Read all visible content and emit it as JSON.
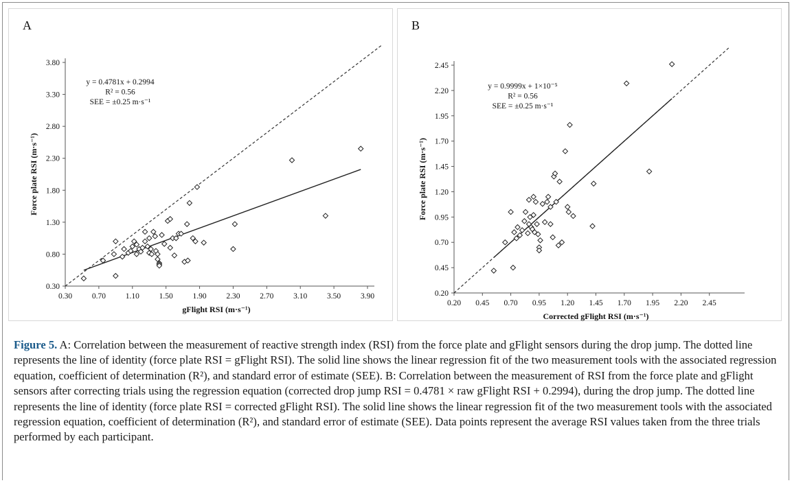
{
  "chart_data": [
    {
      "type": "scatter",
      "panel_label": "A",
      "xlabel": "gFlight RSI (m·s⁻¹)",
      "ylabel": "Force plate RSI (m·s⁻¹)",
      "xlim": [
        0.3,
        3.9
      ],
      "ylim": [
        0.3,
        3.8
      ],
      "xticks": [
        0.3,
        0.7,
        1.1,
        1.5,
        1.9,
        2.3,
        2.7,
        3.1,
        3.5,
        3.9
      ],
      "yticks": [
        0.3,
        0.8,
        1.3,
        1.8,
        2.3,
        2.8,
        3.3,
        3.8
      ],
      "xtick_labels": [
        "0.30",
        "0.70",
        "1.10",
        "1.50",
        "1.90",
        "2.30",
        "2.70",
        "3.10",
        "3.50",
        "3.90"
      ],
      "ytick_labels": [
        "0.30",
        "0.80",
        "1.30",
        "1.80",
        "2.30",
        "2.80",
        "3.30",
        "3.80"
      ],
      "grid": false,
      "identity_line": true,
      "regression": {
        "slope": 0.4781,
        "intercept": 0.2994,
        "x_range": [
          0.52,
          3.82
        ]
      },
      "annotations": [
        "y = 0.4781x + 0.2994",
        "R² = 0.56",
        "SEE = ±0.25 m·s⁻¹"
      ],
      "points": [
        [
          0.52,
          0.42
        ],
        [
          0.9,
          0.46
        ],
        [
          0.75,
          0.7
        ],
        [
          0.88,
          0.8
        ],
        [
          0.9,
          1.0
        ],
        [
          0.98,
          0.76
        ],
        [
          1.0,
          0.88
        ],
        [
          1.05,
          0.82
        ],
        [
          1.08,
          0.85
        ],
        [
          1.1,
          0.92
        ],
        [
          1.12,
          1.0
        ],
        [
          1.15,
          0.8
        ],
        [
          1.15,
          0.95
        ],
        [
          1.18,
          0.88
        ],
        [
          1.2,
          0.84
        ],
        [
          1.22,
          0.9
        ],
        [
          1.25,
          1.0
        ],
        [
          1.25,
          1.15
        ],
        [
          1.28,
          0.92
        ],
        [
          1.3,
          0.82
        ],
        [
          1.3,
          1.05
        ],
        [
          1.32,
          0.88
        ],
        [
          1.33,
          0.8
        ],
        [
          1.35,
          1.15
        ],
        [
          1.37,
          1.08
        ],
        [
          1.38,
          0.85
        ],
        [
          1.4,
          0.8
        ],
        [
          1.4,
          0.72
        ],
        [
          1.42,
          0.66
        ],
        [
          1.42,
          0.64
        ],
        [
          1.42,
          0.62
        ],
        [
          1.45,
          1.1
        ],
        [
          1.48,
          0.96
        ],
        [
          1.52,
          1.32
        ],
        [
          1.55,
          1.35
        ],
        [
          1.55,
          0.9
        ],
        [
          1.58,
          1.05
        ],
        [
          1.6,
          0.78
        ],
        [
          1.62,
          1.05
        ],
        [
          1.65,
          1.12
        ],
        [
          1.68,
          1.12
        ],
        [
          1.72,
          0.68
        ],
        [
          1.75,
          1.27
        ],
        [
          1.76,
          0.7
        ],
        [
          1.78,
          1.6
        ],
        [
          1.82,
          1.05
        ],
        [
          1.85,
          1.0
        ],
        [
          1.87,
          1.85
        ],
        [
          1.95,
          0.98
        ],
        [
          2.3,
          0.88
        ],
        [
          2.32,
          1.27
        ],
        [
          3.0,
          2.27
        ],
        [
          3.4,
          1.4
        ],
        [
          3.82,
          2.45
        ]
      ]
    },
    {
      "type": "scatter",
      "panel_label": "B",
      "xlabel": "Corrected gFlight RSI (m·s⁻¹)",
      "ylabel": "Force plate RSI (m·s⁻¹)",
      "xlim": [
        0.2,
        2.7
      ],
      "ylim": [
        0.2,
        2.45
      ],
      "xticks": [
        0.2,
        0.45,
        0.7,
        0.95,
        1.2,
        1.45,
        1.7,
        1.95,
        2.2,
        2.45
      ],
      "yticks": [
        0.2,
        0.45,
        0.7,
        0.95,
        1.2,
        1.45,
        1.7,
        1.95,
        2.2,
        2.45
      ],
      "xtick_labels": [
        "0.20",
        "0.45",
        "0.70",
        "0.95",
        "1.20",
        "1.45",
        "1.70",
        "1.95",
        "2.20",
        "2.45"
      ],
      "ytick_labels": [
        "0.20",
        "0.45",
        "0.70",
        "0.95",
        "1.20",
        "1.45",
        "1.70",
        "1.95",
        "2.20",
        "2.45"
      ],
      "grid": false,
      "identity_line": true,
      "regression": {
        "slope": 0.9999,
        "intercept": 1e-05,
        "x_range": [
          0.55,
          2.12
        ]
      },
      "annotations": [
        "y = 0.9999x + 1×10⁻⁵",
        "R² = 0.56",
        "SEE = ±0.25 m·s⁻¹"
      ],
      "points": [
        [
          0.55,
          0.42
        ],
        [
          0.65,
          0.7
        ],
        [
          0.7,
          1.0
        ],
        [
          0.72,
          0.45
        ],
        [
          0.73,
          0.8
        ],
        [
          0.75,
          0.74
        ],
        [
          0.76,
          0.85
        ],
        [
          0.78,
          0.77
        ],
        [
          0.8,
          0.82
        ],
        [
          0.82,
          0.91
        ],
        [
          0.83,
          1.0
        ],
        [
          0.85,
          0.79
        ],
        [
          0.86,
          0.88
        ],
        [
          0.86,
          1.12
        ],
        [
          0.87,
          0.95
        ],
        [
          0.88,
          0.85
        ],
        [
          0.89,
          0.83
        ],
        [
          0.9,
          1.15
        ],
        [
          0.9,
          0.97
        ],
        [
          0.91,
          0.8
        ],
        [
          0.92,
          1.1
        ],
        [
          0.93,
          0.88
        ],
        [
          0.94,
          0.78
        ],
        [
          0.95,
          0.65
        ],
        [
          0.95,
          0.62
        ],
        [
          0.96,
          0.72
        ],
        [
          0.98,
          1.08
        ],
        [
          1.0,
          0.9
        ],
        [
          1.02,
          1.1
        ],
        [
          1.03,
          1.15
        ],
        [
          1.05,
          0.88
        ],
        [
          1.05,
          1.05
        ],
        [
          1.07,
          0.75
        ],
        [
          1.08,
          1.35
        ],
        [
          1.09,
          1.38
        ],
        [
          1.1,
          1.1
        ],
        [
          1.12,
          0.67
        ],
        [
          1.13,
          1.3
        ],
        [
          1.15,
          0.7
        ],
        [
          1.18,
          1.6
        ],
        [
          1.2,
          1.05
        ],
        [
          1.21,
          1.0
        ],
        [
          1.22,
          1.86
        ],
        [
          1.25,
          0.96
        ],
        [
          1.42,
          0.86
        ],
        [
          1.43,
          1.28
        ],
        [
          1.72,
          2.27
        ],
        [
          1.92,
          1.4
        ],
        [
          2.12,
          2.46
        ]
      ]
    }
  ],
  "caption": {
    "label": "Figure 5.",
    "text": " A: Correlation between the measurement of reactive strength index (RSI) from the force plate and gFlight sensors during the drop jump. The dotted line represents the line of identity (force plate RSI = gFlight RSI). The solid line shows the linear regression fit of the two measurement tools with the associated regression equation, coefficient of determination (R²), and standard error of estimate (SEE). B: Correlation between the measurement of RSI from the force plate and gFlight sensors after correcting trials using the regression equation (corrected drop jump RSI = 0.4781 × raw gFlight RSI + 0.2994), during the drop jump. The dotted line represents the line of identity (force plate RSI = corrected gFlight RSI). The solid line shows the linear regression fit of the two measurement tools with the associated regression equation, coefficient of determination (R²), and standard error of estimate (SEE). Data points represent the average RSI values taken from the three trials performed by each participant."
  }
}
